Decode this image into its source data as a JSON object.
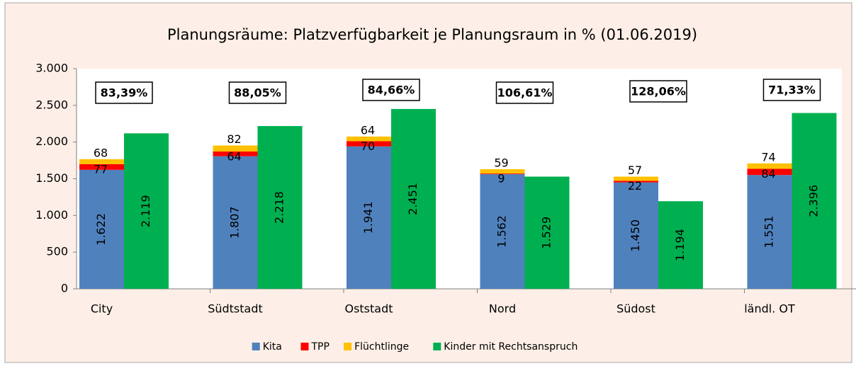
{
  "chart_data": {
    "type": "bar",
    "title": "Planungsräume: Platzverfügbarkeit je Planungsraum  in % (01.06.2019)",
    "categories": [
      "City",
      "Südtstadt",
      "Oststadt",
      "Nord",
      "Südost",
      "ländl. OT"
    ],
    "annotations": [
      "83,39%",
      "88,05%",
      "84,66%",
      "106,61%",
      "128,06%",
      "71,33%"
    ],
    "series": [
      {
        "name": "Kita",
        "color": "#4f81bd",
        "stack": "a",
        "values": [
          1622,
          1807,
          1941,
          1562,
          1450,
          1551
        ],
        "value_labels": [
          "1.622",
          "1.807",
          "1.941",
          "1.562",
          "1.450",
          "1.551"
        ]
      },
      {
        "name": "TPP",
        "color": "#ff0000",
        "stack": "a",
        "values": [
          77,
          64,
          70,
          9,
          22,
          84
        ]
      },
      {
        "name": "Flüchtlinge",
        "color": "#ffc000",
        "stack": "a",
        "values": [
          68,
          82,
          64,
          59,
          57,
          74
        ]
      },
      {
        "name": "Kinder mit Rechtsanspruch",
        "color": "#00b050",
        "stack": "b",
        "values": [
          2119,
          2218,
          2451,
          1529,
          1194,
          2396
        ],
        "value_labels": [
          "2.119",
          "2.218",
          "2.451",
          "1.529",
          "1.194",
          "2.396"
        ]
      }
    ],
    "ylim": [
      0,
      3000
    ],
    "yticks": [
      0,
      500,
      {
        "value": 1000,
        "label": "1.000"
      },
      {
        "value": 1500,
        "label": "1.500"
      },
      {
        "value": 2000,
        "label": "2.000"
      },
      {
        "value": 2500,
        "label": "2.500"
      },
      {
        "value": 3000,
        "label": "3.000"
      }
    ],
    "legend": "bottom"
  }
}
